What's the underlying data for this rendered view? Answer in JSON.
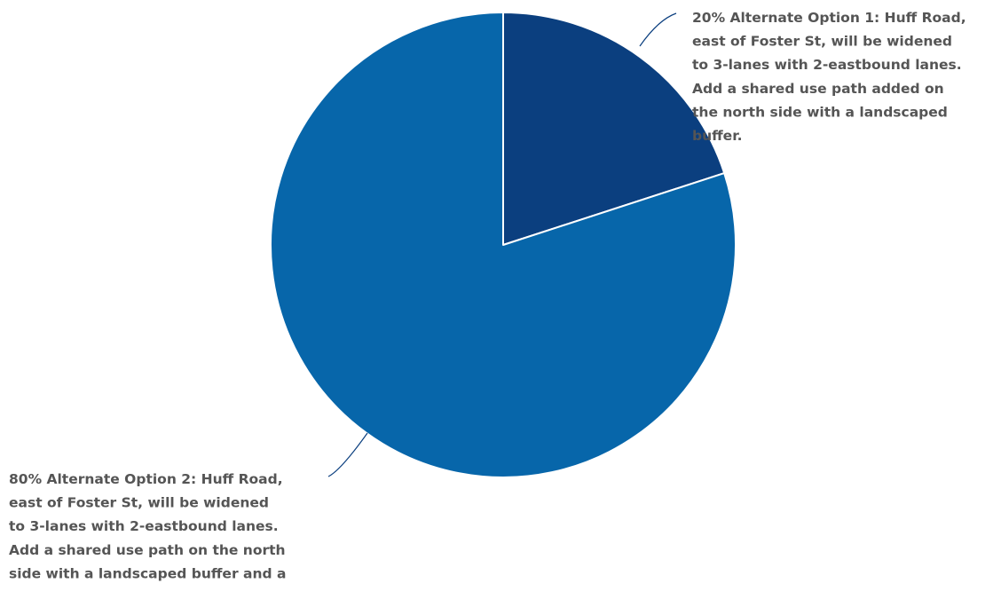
{
  "chart_data": {
    "type": "pie",
    "title": "",
    "slices": [
      {
        "name": "Alternate Option 1: Huff Road, east of Foster St, will be widened to 3-lanes with 2-eastbound lanes. Add a shared use path added on the north side with a landscaped buffer.",
        "value": 20,
        "color": "#0b3f7f",
        "label_lines": [
          "20% Alternate Option 1: Huff Road,",
          "east of Foster St, will be widened",
          "to 3-lanes with 2-eastbound lanes.",
          "Add a shared use path added on",
          "the north side with a landscaped",
          "buffer."
        ]
      },
      {
        "name": "Alternate Option 2: Huff Road, east of Foster St, will be widened to 3-lanes with 2-eastbound lanes. Add a shared use path on the north side with a landscaped buffer and a",
        "value": 80,
        "color": "#0766aa",
        "label_lines": [
          "80% Alternate Option 2: Huff Road,",
          "east of Foster St, will be widened",
          "to 3-lanes with 2-eastbound lanes.",
          "Add a shared use path on the north",
          "side with a landscaped buffer and a"
        ]
      }
    ],
    "label_color": "#555555",
    "leader_color": "#0b3f7f",
    "legend": "none"
  }
}
